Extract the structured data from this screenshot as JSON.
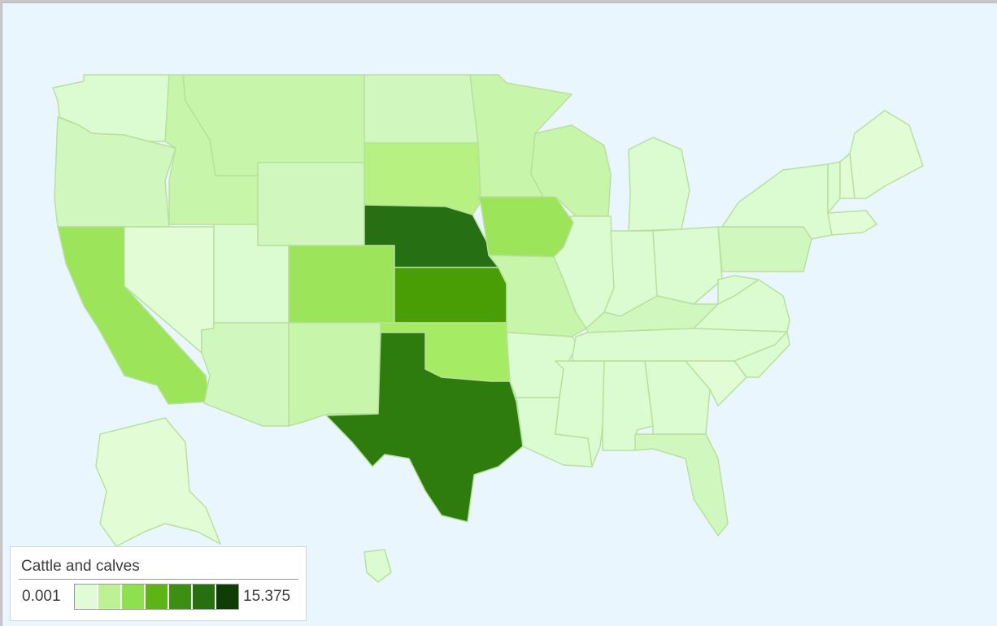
{
  "legend": {
    "title": "Cattle and calves",
    "min_label": "0.001",
    "max_label": "15.375",
    "gradient_steps": [
      "#e2fbd7",
      "#bdf294",
      "#8fe04f",
      "#5cb514",
      "#3c8f10",
      "#26700f",
      "#0e3d05"
    ]
  },
  "colors": {
    "background": "#eaf6fe",
    "state_border": "#b9e09e",
    "low": "#e2fdd6",
    "very_light": "#dbfbd0",
    "light": "#d0f7bd",
    "light_mid": "#c7f5a9",
    "mid": "#b7f182",
    "mid_strong": "#a5eb63",
    "strong": "#9ce45a",
    "very_strong": "#4a9e05",
    "darkest": "#266f12",
    "dark_texas": "#2e7b0e"
  },
  "map": {
    "region": "United States",
    "states": [
      {
        "id": "WA",
        "tone": "very_light"
      },
      {
        "id": "OR",
        "tone": "light"
      },
      {
        "id": "CA",
        "tone": "strong"
      },
      {
        "id": "NV",
        "tone": "low"
      },
      {
        "id": "ID",
        "tone": "light_mid"
      },
      {
        "id": "MT",
        "tone": "light_mid"
      },
      {
        "id": "WY",
        "tone": "light"
      },
      {
        "id": "UT",
        "tone": "very_light"
      },
      {
        "id": "AZ",
        "tone": "light"
      },
      {
        "id": "CO",
        "tone": "strong"
      },
      {
        "id": "NM",
        "tone": "light_mid"
      },
      {
        "id": "ND",
        "tone": "light"
      },
      {
        "id": "SD",
        "tone": "mid"
      },
      {
        "id": "NE",
        "tone": "darkest"
      },
      {
        "id": "KS",
        "tone": "very_strong"
      },
      {
        "id": "OK",
        "tone": "mid_strong"
      },
      {
        "id": "TX",
        "tone": "dark_texas"
      },
      {
        "id": "MN",
        "tone": "light_mid"
      },
      {
        "id": "IA",
        "tone": "strong"
      },
      {
        "id": "MO",
        "tone": "light_mid"
      },
      {
        "id": "AR",
        "tone": "very_light"
      },
      {
        "id": "LA",
        "tone": "very_light"
      },
      {
        "id": "WI",
        "tone": "light_mid"
      },
      {
        "id": "IL",
        "tone": "very_light"
      },
      {
        "id": "MI",
        "tone": "very_light"
      },
      {
        "id": "IN",
        "tone": "very_light"
      },
      {
        "id": "OH",
        "tone": "very_light"
      },
      {
        "id": "KY",
        "tone": "light"
      },
      {
        "id": "TN",
        "tone": "very_light"
      },
      {
        "id": "MS",
        "tone": "very_light"
      },
      {
        "id": "AL",
        "tone": "very_light"
      },
      {
        "id": "GA",
        "tone": "very_light"
      },
      {
        "id": "FL",
        "tone": "light"
      },
      {
        "id": "SC",
        "tone": "low"
      },
      {
        "id": "NC",
        "tone": "very_light"
      },
      {
        "id": "VA",
        "tone": "very_light"
      },
      {
        "id": "WV",
        "tone": "very_light"
      },
      {
        "id": "PA",
        "tone": "light"
      },
      {
        "id": "NY",
        "tone": "very_light"
      },
      {
        "id": "VT",
        "tone": "very_light"
      },
      {
        "id": "NH",
        "tone": "low"
      },
      {
        "id": "ME",
        "tone": "low"
      },
      {
        "id": "MA",
        "tone": "low"
      },
      {
        "id": "AK",
        "tone": "low"
      },
      {
        "id": "HI",
        "tone": "very_light"
      }
    ]
  }
}
